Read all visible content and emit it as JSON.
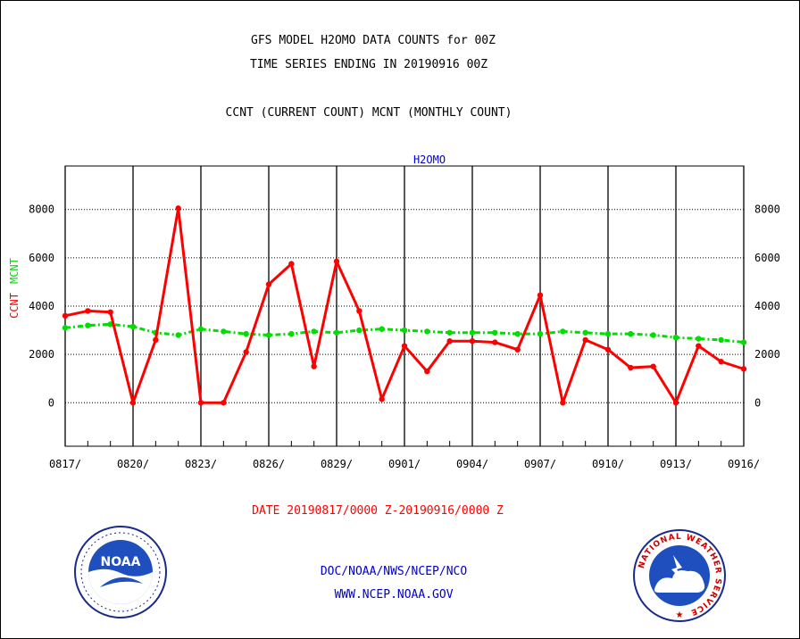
{
  "header": {
    "title_line1": "GFS MODEL H2OMO DATA COUNTS for 00Z",
    "title_line2": "TIME SERIES ENDING IN 20190916 00Z",
    "subtitle": "CCNT (CURRENT COUNT) MCNT (MONTHLY COUNT)"
  },
  "footer": {
    "date_range": "DATE 20190817/0000 Z-20190916/0000 Z",
    "org_line": "DOC/NOAA/NWS/NCEP/NCO",
    "url_line": "WWW.NCEP.NOAA.GOV"
  },
  "logos": {
    "noaa_text": "NOAA",
    "nws_text": "NATIONAL WEATHER SERVICE"
  },
  "colors": {
    "ccnt": "#ff0000",
    "mcnt": "#00dd00",
    "panel_label": "#0000cc",
    "date_text": "#ff0000",
    "footer_text": "#0000cc"
  },
  "chart_data": {
    "type": "line",
    "panel_label": "H2OMO",
    "ylabel_ccnt": "CCNT",
    "ylabel_mcnt": "MCNT",
    "ylim": [
      -1800,
      9800
    ],
    "yticks": [
      0,
      2000,
      4000,
      6000,
      8000
    ],
    "ytick_labels": [
      "0",
      "2000",
      "4000",
      "6000",
      "8000"
    ],
    "xticks": [
      "0817/",
      "0820/",
      "0823/",
      "0826/",
      "0829/",
      "0901/",
      "0904/",
      "0907/",
      "0910/",
      "0913/",
      "0916/"
    ],
    "x": [
      "0817",
      "0818",
      "0819",
      "0820",
      "0821",
      "0822",
      "0823",
      "0824",
      "0825",
      "0826",
      "0827",
      "0828",
      "0829",
      "0830",
      "0831",
      "0901",
      "0902",
      "0903",
      "0904",
      "0905",
      "0906",
      "0907",
      "0908",
      "0909",
      "0910",
      "0911",
      "0912",
      "0913",
      "0914",
      "0915",
      "0916"
    ],
    "grid": true,
    "series": [
      {
        "name": "CCNT",
        "values": [
          3600,
          3800,
          3750,
          0,
          2600,
          8050,
          0,
          0,
          2100,
          4900,
          5750,
          1500,
          5850,
          3800,
          150,
          2350,
          1300,
          2550,
          2550,
          2500,
          2200,
          4450,
          0,
          2600,
          2200,
          1450,
          1500,
          0,
          2350,
          1700,
          1400
        ]
      },
      {
        "name": "MCNT",
        "values": [
          3100,
          3200,
          3250,
          3150,
          2900,
          2800,
          3050,
          2950,
          2850,
          2800,
          2850,
          2950,
          2900,
          3000,
          3050,
          3000,
          2950,
          2900,
          2900,
          2900,
          2850,
          2850,
          2950,
          2900,
          2850,
          2850,
          2800,
          2700,
          2650,
          2600,
          2500
        ]
      }
    ]
  }
}
